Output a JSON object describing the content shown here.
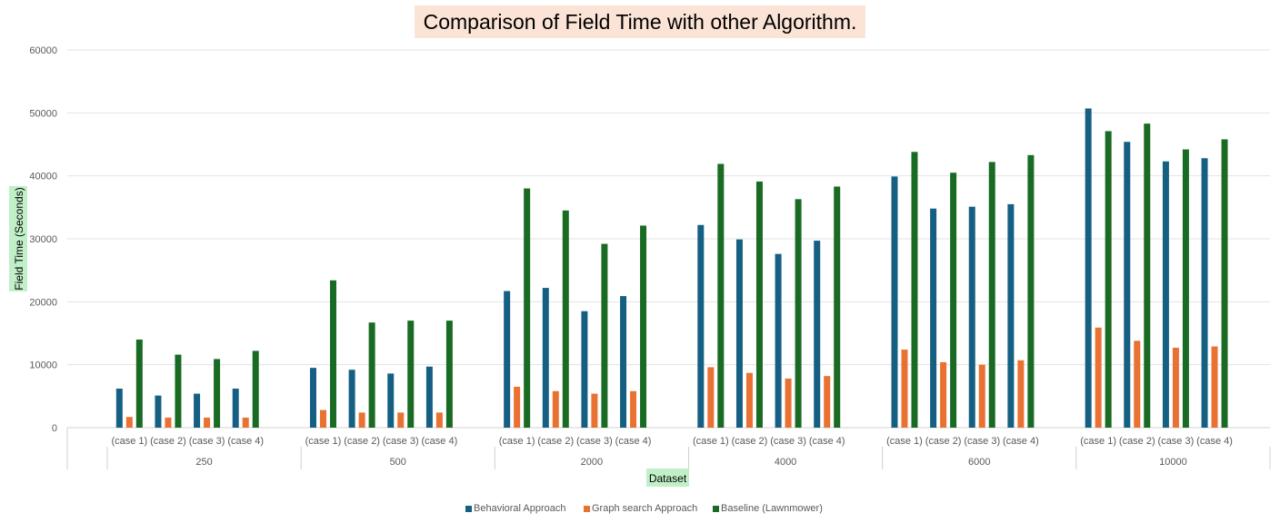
{
  "chart_data": {
    "type": "bar",
    "title": "Comparison of Field Time  with other Algorithm.",
    "xlabel": "Dataset",
    "ylabel": "Field Time (Seconds)",
    "ylim": [
      0,
      60000
    ],
    "yticks": [
      0,
      10000,
      20000,
      30000,
      40000,
      50000,
      60000
    ],
    "grid": true,
    "legend_position": "bottom",
    "groups": [
      {
        "label": "250",
        "cases": [
          "(case 1)",
          "(case 2)",
          "(case 3)",
          "(case 4)"
        ]
      },
      {
        "label": "500",
        "cases": [
          "(case 1)",
          "(case 2)",
          "(case 3)",
          "(case 4)"
        ]
      },
      {
        "label": "2000",
        "cases": [
          "(case 1)",
          "(case 2)",
          "(case 3)",
          "(case 4)"
        ]
      },
      {
        "label": "4000",
        "cases": [
          "(case 1)",
          "(case 2)",
          "(case 3)",
          "(case 4)"
        ]
      },
      {
        "label": "6000",
        "cases": [
          "(case 1)",
          "(case 2)",
          "(case 3)",
          "(case 4)"
        ]
      },
      {
        "label": "10000",
        "cases": [
          "(case 1)",
          "(case 2)",
          "(case 3)",
          "(case 4)"
        ]
      }
    ],
    "series": [
      {
        "name": "Behavioral  Approach",
        "color": "#156082",
        "values": [
          6200,
          5100,
          5400,
          6200,
          9500,
          9200,
          8600,
          9700,
          21700,
          22200,
          18500,
          20900,
          32200,
          29900,
          27600,
          29700,
          39900,
          34800,
          35100,
          35500,
          50700,
          45400,
          42300,
          42800
        ]
      },
      {
        "name": "Graph search  Approach",
        "color": "#e97132",
        "values": [
          1700,
          1600,
          1600,
          1600,
          2800,
          2400,
          2400,
          2400,
          6500,
          5800,
          5400,
          5800,
          9600,
          8700,
          7800,
          8200,
          12400,
          10400,
          10000,
          10700,
          15900,
          13800,
          12700,
          12900
        ]
      },
      {
        "name": "Baseline  (Lawnmower)",
        "color": "#196b24",
        "values": [
          14000,
          11600,
          10900,
          12200,
          23400,
          16700,
          17000,
          17000,
          38000,
          34500,
          29200,
          32100,
          41900,
          39100,
          36300,
          38300,
          43800,
          40500,
          42200,
          43300,
          47100,
          48300,
          44200,
          45800
        ]
      }
    ]
  }
}
